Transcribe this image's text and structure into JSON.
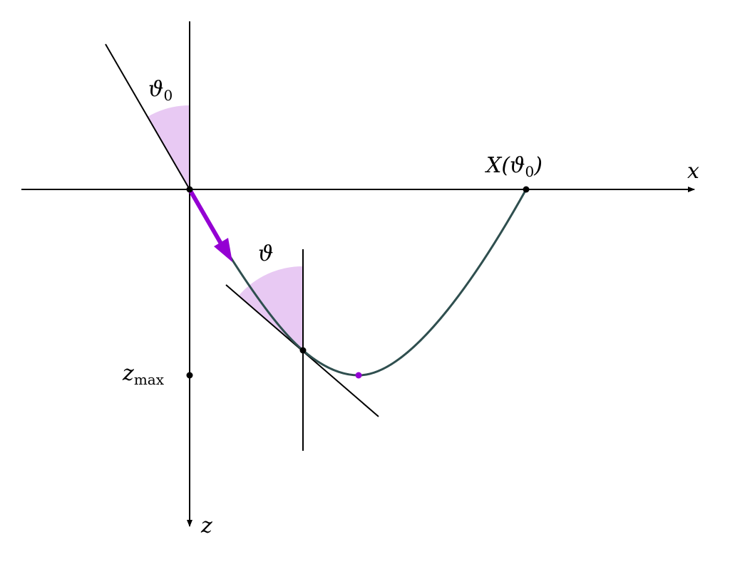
{
  "labels": {
    "theta0": "ϑ",
    "theta0_sub": "0",
    "theta": "ϑ",
    "x_axis": "x",
    "z_axis": "z",
    "zmax": "z",
    "zmax_sub": "max",
    "X_theta0_pre": "X(ϑ",
    "X_theta0_sub": "0",
    "X_theta0_post": ")"
  },
  "colors": {
    "curve": "#2f4f4f",
    "accent": "#9400d3",
    "angle_fill": "#e8c9f3",
    "axes": "#000000"
  }
}
